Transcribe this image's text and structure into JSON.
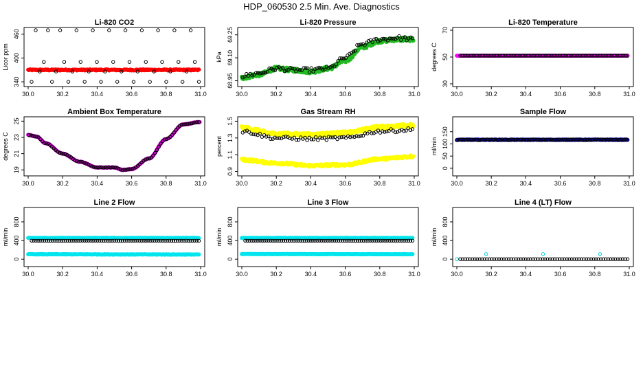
{
  "main_title": "HDP_060530  2.5 Min. Ave. Diagnostics",
  "chart_data": [
    {
      "id": "co2",
      "type": "scatter",
      "title": "Li-820 CO2",
      "ylabel": "Licor ppm",
      "xlim": [
        30.0,
        31.0
      ],
      "ylim": [
        335,
        470
      ],
      "xticks": [
        "30.0",
        "30.2",
        "30.4",
        "30.6",
        "30.8",
        "31.0"
      ],
      "xtick_values": [
        30.0,
        30.2,
        30.4,
        30.6,
        30.8,
        31.0
      ],
      "yticks": [
        "340",
        "400",
        "460"
      ],
      "ytick_values": [
        340,
        400,
        460
      ],
      "series": [
        {
          "name": "mean",
          "color": "#ff0000",
          "style": "dense",
          "x_start": 30.0,
          "x_end": 30.99,
          "y_start": 370,
          "y_end": 370,
          "noise": 1.5
        },
        {
          "name": "black",
          "color": "#000000",
          "style": "points",
          "x_start": 30.02,
          "x_end": 30.99,
          "y": [
            340,
            470,
            366,
            390,
            470,
            340,
            366,
            470,
            390,
            340,
            366,
            470,
            390,
            340,
            366,
            470,
            390,
            340,
            366,
            470,
            390,
            340,
            366,
            470,
            390,
            340,
            366,
            470,
            390,
            340,
            366,
            470,
            390,
            340,
            366,
            470,
            390,
            340,
            366,
            470,
            390,
            340
          ]
        }
      ]
    },
    {
      "id": "pressure",
      "type": "scatter",
      "title": "Li-820 Pressure",
      "ylabel": "kPa",
      "xlim": [
        30.0,
        31.0
      ],
      "ylim": [
        68.93,
        69.28
      ],
      "xticks": [
        "30.0",
        "30.2",
        "30.4",
        "30.6",
        "30.8",
        "31.0"
      ],
      "xtick_values": [
        30.0,
        30.2,
        30.4,
        30.6,
        30.8,
        31.0
      ],
      "yticks": [
        "68.95",
        "69.10",
        "69.25"
      ],
      "ytick_values": [
        68.95,
        69.1,
        69.25
      ],
      "series": [
        {
          "name": "green",
          "color": "#22bb22",
          "style": "dense_curve",
          "x": [
            30.0,
            30.1,
            30.2,
            30.3,
            30.4,
            30.5,
            30.6,
            30.7,
            30.8,
            30.9,
            31.0
          ],
          "y": [
            68.97,
            68.99,
            69.03,
            69.02,
            69.01,
            69.03,
            69.08,
            69.17,
            69.21,
            69.22,
            69.22
          ],
          "noise": 0.012
        },
        {
          "name": "black",
          "color": "#000000",
          "style": "curve_points",
          "x": [
            30.0,
            30.1,
            30.2,
            30.3,
            30.4,
            30.5,
            30.6,
            30.7,
            30.8,
            30.9,
            31.0
          ],
          "y": [
            68.98,
            69.0,
            69.03,
            69.02,
            69.02,
            69.03,
            69.1,
            69.19,
            69.22,
            69.23,
            69.22
          ],
          "noise": 0.014,
          "count": 90
        }
      ]
    },
    {
      "id": "temp",
      "type": "scatter",
      "title": "Li-820 Temperature",
      "ylabel": "degrees C",
      "xlim": [
        30.0,
        31.0
      ],
      "ylim": [
        30,
        70
      ],
      "xticks": [
        "30.0",
        "30.2",
        "30.4",
        "30.6",
        "30.8",
        "31.0"
      ],
      "xtick_values": [
        30.0,
        30.2,
        30.4,
        30.6,
        30.8,
        31.0
      ],
      "yticks": [
        "30",
        "50",
        "70"
      ],
      "ytick_values": [
        30,
        50,
        70
      ],
      "series": [
        {
          "name": "magenta",
          "color": "#ff00ff",
          "style": "dense",
          "x_start": 30.0,
          "x_end": 30.99,
          "y_start": 51,
          "y_end": 51,
          "noise": 0.05
        },
        {
          "name": "black",
          "color": "#000000",
          "style": "sparse",
          "x_start": 30.02,
          "x_end": 30.99,
          "y_start": 51,
          "y_end": 51,
          "noise": 0.05,
          "count": 110
        }
      ]
    },
    {
      "id": "ambient",
      "type": "scatter",
      "title": "Ambient Box Temperature",
      "ylabel": "degrees C",
      "xlim": [
        30.0,
        31.0
      ],
      "ylim": [
        18.6,
        25.2
      ],
      "xticks": [
        "30.0",
        "30.2",
        "30.4",
        "30.6",
        "30.8",
        "31.0"
      ],
      "xtick_values": [
        30.0,
        30.2,
        30.4,
        30.6,
        30.8,
        31.0
      ],
      "yticks": [
        "19",
        "21",
        "23",
        "25"
      ],
      "ytick_values": [
        19,
        21,
        23,
        25
      ],
      "series": [
        {
          "name": "magenta",
          "color": "#cc00cc",
          "style": "dense_curve",
          "x": [
            30.0,
            30.05,
            30.1,
            30.2,
            30.3,
            30.4,
            30.5,
            30.55,
            30.6,
            30.7,
            30.8,
            30.9,
            31.0
          ],
          "y": [
            23.3,
            23.1,
            22.3,
            21.0,
            20.0,
            19.3,
            19.3,
            19.0,
            19.1,
            20.4,
            22.8,
            24.6,
            24.9
          ],
          "noise": 0.03
        },
        {
          "name": "black",
          "color": "#000000",
          "style": "curve_points",
          "x": [
            30.0,
            30.05,
            30.1,
            30.2,
            30.3,
            30.4,
            30.5,
            30.55,
            30.6,
            30.7,
            30.8,
            30.9,
            31.0
          ],
          "y": [
            23.3,
            23.1,
            22.3,
            21.0,
            20.0,
            19.3,
            19.3,
            19.0,
            19.1,
            20.4,
            22.8,
            24.6,
            24.9
          ],
          "noise": 0.02,
          "count": 90
        }
      ]
    },
    {
      "id": "rh",
      "type": "scatter",
      "title": "Gas Stream RH",
      "ylabel": "percent",
      "xlim": [
        30.0,
        31.0
      ],
      "ylim": [
        0.88,
        1.52
      ],
      "xticks": [
        "30.0",
        "30.2",
        "30.4",
        "30.6",
        "30.8",
        "31.0"
      ],
      "xtick_values": [
        30.0,
        30.2,
        30.4,
        30.6,
        30.8,
        31.0
      ],
      "yticks": [
        "0.9",
        "1.1",
        "1.3",
        "1.5"
      ],
      "ytick_values": [
        0.9,
        1.1,
        1.3,
        1.5
      ],
      "series": [
        {
          "name": "yellow_high",
          "color": "#ffff00",
          "style": "dense_curve",
          "x": [
            30.0,
            30.2,
            30.4,
            30.6,
            30.8,
            31.0
          ],
          "y": [
            1.42,
            1.35,
            1.34,
            1.36,
            1.43,
            1.45
          ],
          "noise": 0.02
        },
        {
          "name": "yellow_low",
          "color": "#ffff00",
          "style": "dense_curve",
          "x": [
            30.0,
            30.2,
            30.4,
            30.6,
            30.8,
            31.0
          ],
          "y": [
            1.04,
            1.0,
            0.97,
            0.98,
            1.05,
            1.08
          ],
          "noise": 0.015
        },
        {
          "name": "black",
          "color": "#000000",
          "style": "curve_points",
          "x": [
            30.0,
            30.2,
            30.4,
            30.6,
            30.8,
            31.0
          ],
          "y": [
            1.38,
            1.3,
            1.29,
            1.3,
            1.38,
            1.4
          ],
          "noise": 0.02,
          "count": 80
        }
      ]
    },
    {
      "id": "sample",
      "type": "scatter",
      "title": "Sample Flow",
      "ylabel": "ml/min",
      "xlim": [
        30.0,
        31.0
      ],
      "ylim": [
        -20,
        200
      ],
      "xticks": [
        "30.0",
        "30.2",
        "30.4",
        "30.6",
        "30.8",
        "31.0"
      ],
      "xtick_values": [
        30.0,
        30.2,
        30.4,
        30.6,
        30.8,
        31.0
      ],
      "yticks": [
        "0",
        "50",
        "100",
        "150"
      ],
      "ytick_values": [
        0,
        50,
        100,
        150
      ],
      "series": [
        {
          "name": "blue",
          "color": "#1010cc",
          "style": "dense",
          "x_start": 30.0,
          "x_end": 30.99,
          "y_start": 117,
          "y_end": 117,
          "noise": 1.2
        },
        {
          "name": "black",
          "color": "#000000",
          "style": "sparse",
          "x_start": 30.0,
          "x_end": 30.99,
          "y_start": 117,
          "y_end": 117,
          "noise": 1.5,
          "count": 110
        }
      ]
    },
    {
      "id": "line2",
      "type": "scatter",
      "title": "Line 2 Flow",
      "ylabel": "ml/min",
      "xlim": [
        30.0,
        31.0
      ],
      "ylim": [
        -100,
        1050
      ],
      "xticks": [
        "30.0",
        "30.2",
        "30.4",
        "30.6",
        "30.8",
        "31.0"
      ],
      "xtick_values": [
        30.0,
        30.2,
        30.4,
        30.6,
        30.8,
        31.0
      ],
      "yticks": [
        "0",
        "400",
        "800"
      ],
      "ytick_values": [
        0,
        400,
        800
      ],
      "series": [
        {
          "name": "cyan_high",
          "color": "#00e5ee",
          "style": "dense",
          "x_start": 30.0,
          "x_end": 30.99,
          "y_start": 455,
          "y_end": 455,
          "noise": 4
        },
        {
          "name": "cyan_low",
          "color": "#00e5ee",
          "style": "dense",
          "x_start": 30.0,
          "x_end": 30.99,
          "y_start": 105,
          "y_end": 100,
          "noise": 5
        },
        {
          "name": "black",
          "color": "#000000",
          "style": "sparse",
          "x_start": 30.02,
          "x_end": 30.99,
          "y_start": 395,
          "y_end": 395,
          "noise": 2,
          "count": 80
        }
      ]
    },
    {
      "id": "line3",
      "type": "scatter",
      "title": "Line 3 Flow",
      "ylabel": "ml/min",
      "xlim": [
        30.0,
        31.0
      ],
      "ylim": [
        -100,
        1050
      ],
      "xticks": [
        "30.0",
        "30.2",
        "30.4",
        "30.6",
        "30.8",
        "31.0"
      ],
      "xtick_values": [
        30.0,
        30.2,
        30.4,
        30.6,
        30.8,
        31.0
      ],
      "yticks": [
        "0",
        "400",
        "800"
      ],
      "ytick_values": [
        0,
        400,
        800
      ],
      "series": [
        {
          "name": "cyan_high",
          "color": "#00e5ee",
          "style": "dense",
          "x_start": 30.0,
          "x_end": 30.99,
          "y_start": 455,
          "y_end": 455,
          "noise": 4
        },
        {
          "name": "cyan_low",
          "color": "#00e5ee",
          "style": "dense",
          "x_start": 30.0,
          "x_end": 30.99,
          "y_start": 110,
          "y_end": 105,
          "noise": 3
        },
        {
          "name": "black",
          "color": "#000000",
          "style": "sparse",
          "x_start": 30.02,
          "x_end": 30.99,
          "y_start": 395,
          "y_end": 395,
          "noise": 2,
          "count": 80
        }
      ]
    },
    {
      "id": "line4",
      "type": "scatter",
      "title": "Line 4 (LT) Flow",
      "ylabel": "ml/min",
      "xlim": [
        30.0,
        31.0
      ],
      "ylim": [
        -100,
        1050
      ],
      "xticks": [
        "30.0",
        "30.2",
        "30.4",
        "30.6",
        "30.8",
        "31.0"
      ],
      "xtick_values": [
        30.0,
        30.2,
        30.4,
        30.6,
        30.8,
        31.0
      ],
      "yticks": [
        "0",
        "400",
        "800"
      ],
      "ytick_values": [
        0,
        400,
        800
      ],
      "series": [
        {
          "name": "cyan",
          "color": "#00d5de",
          "style": "points_xy",
          "x": [
            30.0,
            30.17,
            30.5,
            30.83
          ],
          "y": [
            0,
            110,
            110,
            110
          ]
        },
        {
          "name": "black",
          "color": "#000000",
          "style": "sparse",
          "x_start": 30.02,
          "x_end": 30.99,
          "y_start": 0,
          "y_end": 0,
          "noise": 0,
          "count": 70
        }
      ]
    }
  ]
}
